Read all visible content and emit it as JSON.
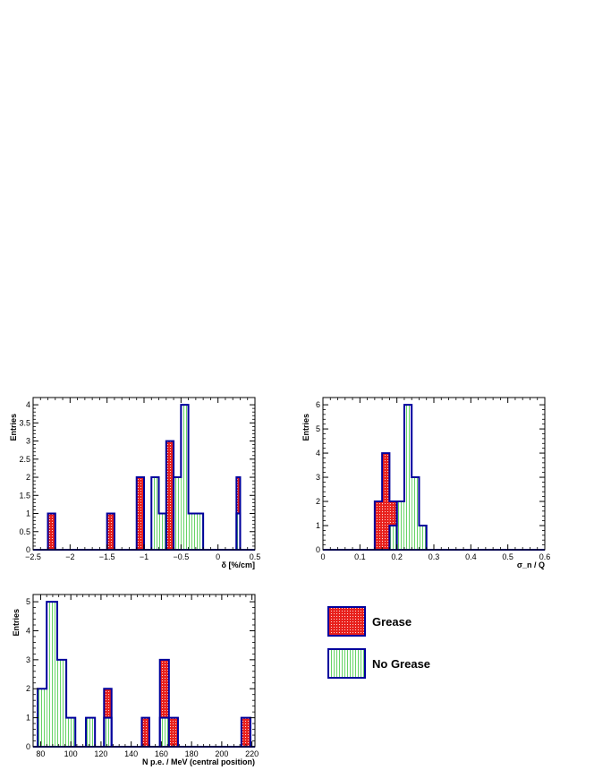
{
  "colors": {
    "grease": "#e8201c",
    "no_grease_hatch": "#3fc83f",
    "outline": "#00009c",
    "axis": "#000000"
  },
  "legend": {
    "items": [
      {
        "label": "Grease",
        "pattern": "red-dots"
      },
      {
        "label": "No Grease",
        "pattern": "green-vertical-lines"
      }
    ]
  },
  "chart_data": [
    {
      "type": "bar",
      "xlabel": "δ [%/cm]",
      "ylabel": "Entries",
      "xlim": [
        -2.5,
        0.5
      ],
      "ylim": [
        0,
        4.2
      ],
      "xticks": [
        -2.5,
        -2,
        -1.5,
        -1,
        -0.5,
        0,
        0.5
      ],
      "xtick_labels": [
        "−2.5",
        "−2",
        "−1.5",
        "−1",
        "−0.5",
        "0",
        "0.5"
      ],
      "yticks": [
        0,
        0.5,
        1,
        1.5,
        2,
        2.5,
        3,
        3.5,
        4
      ],
      "ytick_labels": [
        "0",
        "0.5",
        "1",
        "1.5",
        "2",
        "2.5",
        "3",
        "3.5",
        "4"
      ],
      "series": [
        {
          "name": "Grease",
          "bins": [
            [
              -2.3,
              -2.2,
              1
            ],
            [
              -1.5,
              -1.4,
              1
            ],
            [
              -1.1,
              -1.0,
              2
            ],
            [
              -0.7,
              -0.6,
              3
            ],
            [
              0.25,
              0.3,
              2
            ]
          ]
        },
        {
          "name": "No Grease",
          "bins": [
            [
              -0.9,
              -0.8,
              2
            ],
            [
              -0.8,
              -0.7,
              1
            ],
            [
              -0.6,
              -0.5,
              2
            ],
            [
              -0.5,
              -0.4,
              4
            ],
            [
              -0.4,
              -0.2,
              1
            ],
            [
              0.25,
              0.3,
              1
            ]
          ]
        }
      ]
    },
    {
      "type": "bar",
      "xlabel": "σ_n / Q",
      "ylabel": "Entries",
      "xlim": [
        0,
        0.6
      ],
      "ylim": [
        0,
        6.3
      ],
      "xticks": [
        0,
        0.1,
        0.2,
        0.3,
        0.4,
        0.5,
        0.6
      ],
      "xtick_labels": [
        "0",
        "0.1",
        "0.2",
        "0.3",
        "0.4",
        "0.5",
        "0.6"
      ],
      "yticks": [
        0,
        1,
        2,
        3,
        4,
        5,
        6
      ],
      "ytick_labels": [
        "0",
        "1",
        "2",
        "3",
        "4",
        "5",
        "6"
      ],
      "series": [
        {
          "name": "Grease",
          "bins": [
            [
              0.14,
              0.16,
              2
            ],
            [
              0.16,
              0.18,
              4
            ],
            [
              0.18,
              0.2,
              2
            ]
          ]
        },
        {
          "name": "No Grease",
          "bins": [
            [
              0.18,
              0.2,
              1
            ],
            [
              0.2,
              0.22,
              2
            ],
            [
              0.22,
              0.24,
              6
            ],
            [
              0.24,
              0.26,
              3
            ],
            [
              0.26,
              0.28,
              1
            ]
          ]
        }
      ]
    },
    {
      "type": "bar",
      "xlabel": "N p.e. / MeV (central position)",
      "ylabel": "Entries",
      "xlim": [
        75,
        222
      ],
      "ylim": [
        0,
        5.25
      ],
      "xticks": [
        80,
        100,
        120,
        140,
        160,
        180,
        200,
        220
      ],
      "xtick_labels": [
        "80",
        "100",
        "120",
        "140",
        "160",
        "180",
        "200",
        "220"
      ],
      "yticks": [
        0,
        1,
        2,
        3,
        4,
        5
      ],
      "ytick_labels": [
        "0",
        "1",
        "2",
        "3",
        "4",
        "5"
      ],
      "series": [
        {
          "name": "Grease",
          "bins": [
            [
              122,
              127,
              2
            ],
            [
              147,
              152,
              1
            ],
            [
              159,
              165,
              3
            ],
            [
              165,
              171,
              1
            ],
            [
              213,
              219,
              1
            ]
          ]
        },
        {
          "name": "No Grease",
          "bins": [
            [
              78,
              84,
              2
            ],
            [
              84,
              91,
              5
            ],
            [
              91,
              97,
              3
            ],
            [
              97,
              103,
              1
            ],
            [
              110,
              116,
              1
            ],
            [
              122,
              127,
              1
            ],
            [
              159,
              165,
              1
            ]
          ]
        }
      ]
    }
  ]
}
